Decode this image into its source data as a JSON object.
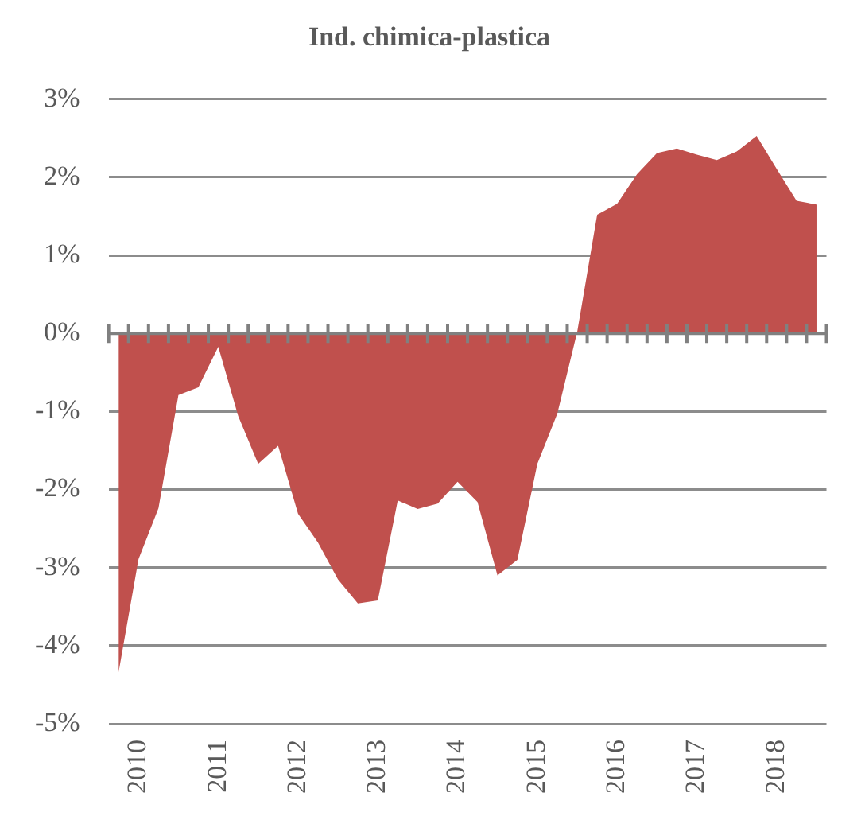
{
  "chart_data": {
    "type": "area",
    "title": "Ind. chimica-plastica",
    "categories": [
      null,
      "2010",
      null,
      null,
      null,
      "2011",
      null,
      null,
      null,
      "2012",
      null,
      null,
      null,
      "2013",
      null,
      null,
      null,
      "2014",
      null,
      null,
      null,
      "2015",
      null,
      null,
      null,
      "2016",
      null,
      null,
      null,
      "2017",
      null,
      null,
      null,
      "2018",
      null,
      null
    ],
    "series": [
      {
        "color": "#c0504d",
        "values": [
          -4.34,
          -2.89,
          -2.24,
          -0.79,
          -0.69,
          -0.17,
          -1.06,
          -1.67,
          -1.44,
          -2.31,
          -2.68,
          -3.15,
          -3.46,
          -3.42,
          -2.14,
          -2.25,
          -2.18,
          -1.9,
          -2.16,
          -3.1,
          -2.9,
          -1.67,
          -1.03,
          0.02,
          1.52,
          1.66,
          2.04,
          2.31,
          2.37,
          2.29,
          2.22,
          2.33,
          2.53,
          2.11,
          1.7,
          1.65
        ]
      }
    ],
    "ylim": [
      -5,
      3
    ],
    "yticks": [
      {
        "value": -5,
        "label": "-5%"
      },
      {
        "value": -4,
        "label": "-4%"
      },
      {
        "value": -3,
        "label": "-3%"
      },
      {
        "value": -2,
        "label": "-2%"
      },
      {
        "value": -1,
        "label": "-1%"
      },
      {
        "value": 0,
        "label": "0%"
      },
      {
        "value": 1,
        "label": "1%"
      },
      {
        "value": 2,
        "label": "2%"
      },
      {
        "value": 3,
        "label": "3%"
      }
    ],
    "grid": "y",
    "legend": false
  }
}
